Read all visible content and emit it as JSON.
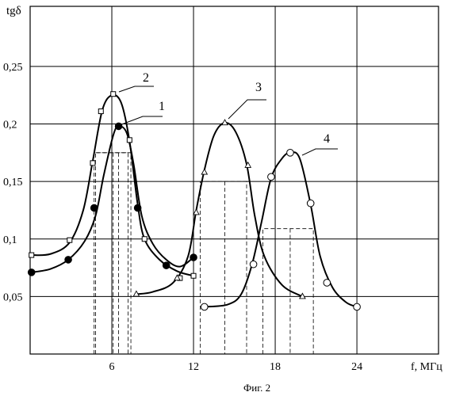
{
  "chart_data": {
    "type": "line",
    "title": "",
    "xlabel": "f, МГц",
    "ylabel": "tgδ",
    "xlim": [
      0,
      28.5
    ],
    "ylim": [
      0,
      0.3
    ],
    "grid": true,
    "x_ticks": [
      6,
      12,
      18,
      24
    ],
    "x_tick_labels": [
      "6",
      "12",
      "18",
      "24"
    ],
    "y_ticks": [
      0.05,
      0.1,
      0.15,
      0.2,
      0.25
    ],
    "y_tick_labels": [
      "0,05",
      "0,1",
      "0,15",
      "0,2",
      "0,25"
    ],
    "caption": "Фиг. 2",
    "series": [
      {
        "name": "1",
        "marker": "filled-circle",
        "curve": [
          [
            0.1,
            0.071
          ],
          [
            1.5,
            0.074
          ],
          [
            2.8,
            0.082
          ],
          [
            4.0,
            0.098
          ],
          [
            4.8,
            0.12
          ],
          [
            5.4,
            0.155
          ],
          [
            6.1,
            0.19
          ],
          [
            6.5,
            0.198
          ],
          [
            7.1,
            0.192
          ],
          [
            7.6,
            0.165
          ],
          [
            8.2,
            0.12
          ],
          [
            9.0,
            0.096
          ],
          [
            10.0,
            0.082
          ],
          [
            11.0,
            0.076
          ],
          [
            12.0,
            0.084
          ]
        ],
        "points": [
          [
            0.1,
            0.071
          ],
          [
            2.8,
            0.082
          ],
          [
            4.7,
            0.127
          ],
          [
            6.5,
            0.198
          ],
          [
            7.9,
            0.127
          ],
          [
            10.0,
            0.077
          ],
          [
            12.0,
            0.084
          ]
        ]
      },
      {
        "name": "2",
        "marker": "open-square",
        "curve": [
          [
            0.1,
            0.086
          ],
          [
            1.5,
            0.087
          ],
          [
            2.9,
            0.097
          ],
          [
            3.9,
            0.125
          ],
          [
            4.6,
            0.168
          ],
          [
            5.3,
            0.212
          ],
          [
            6.0,
            0.225
          ],
          [
            6.7,
            0.218
          ],
          [
            7.3,
            0.185
          ],
          [
            7.9,
            0.13
          ],
          [
            8.4,
            0.1
          ],
          [
            9.5,
            0.082
          ],
          [
            10.8,
            0.072
          ],
          [
            12.0,
            0.068
          ]
        ],
        "points": [
          [
            0.1,
            0.086
          ],
          [
            2.9,
            0.099
          ],
          [
            4.6,
            0.166
          ],
          [
            5.2,
            0.211
          ],
          [
            6.1,
            0.226
          ],
          [
            7.3,
            0.186
          ],
          [
            8.4,
            0.1
          ],
          [
            11.0,
            0.066
          ],
          [
            12.0,
            0.068
          ]
        ]
      },
      {
        "name": "3",
        "marker": "open-triangle",
        "curve": [
          [
            7.8,
            0.052
          ],
          [
            9.0,
            0.054
          ],
          [
            10.5,
            0.062
          ],
          [
            11.6,
            0.085
          ],
          [
            12.2,
            0.125
          ],
          [
            12.8,
            0.16
          ],
          [
            13.5,
            0.19
          ],
          [
            14.3,
            0.201
          ],
          [
            15.1,
            0.193
          ],
          [
            15.9,
            0.165
          ],
          [
            16.5,
            0.12
          ],
          [
            17.2,
            0.085
          ],
          [
            18.5,
            0.06
          ],
          [
            20.0,
            0.05
          ]
        ],
        "points": [
          [
            7.8,
            0.052
          ],
          [
            10.8,
            0.066
          ],
          [
            12.2,
            0.123
          ],
          [
            12.8,
            0.158
          ],
          [
            14.3,
            0.201
          ],
          [
            16.0,
            0.164
          ],
          [
            20.0,
            0.05
          ]
        ]
      },
      {
        "name": "4",
        "marker": "open-circle",
        "curve": [
          [
            12.8,
            0.041
          ],
          [
            14.5,
            0.043
          ],
          [
            15.5,
            0.052
          ],
          [
            16.3,
            0.078
          ],
          [
            17.0,
            0.115
          ],
          [
            17.7,
            0.153
          ],
          [
            18.5,
            0.17
          ],
          [
            19.1,
            0.175
          ],
          [
            19.8,
            0.17
          ],
          [
            20.6,
            0.13
          ],
          [
            21.3,
            0.085
          ],
          [
            22.2,
            0.058
          ],
          [
            23.2,
            0.045
          ],
          [
            24.0,
            0.041
          ]
        ],
        "points": [
          [
            12.8,
            0.041
          ],
          [
            16.4,
            0.078
          ],
          [
            17.7,
            0.154
          ],
          [
            19.1,
            0.175
          ],
          [
            20.6,
            0.131
          ],
          [
            21.8,
            0.062
          ],
          [
            24.0,
            0.041
          ]
        ]
      }
    ],
    "half_width_markers": [
      {
        "series": "1",
        "y": 0.175,
        "x_low": 4.8,
        "x_high": 7.2,
        "x_peak": 6.5
      },
      {
        "series": "2",
        "y": 0.175,
        "x_low": 4.7,
        "x_high": 7.4,
        "x_peak": 6.1
      },
      {
        "series": "3",
        "y": 0.15,
        "x_low": 12.5,
        "x_high": 15.9,
        "x_peak": 14.3
      },
      {
        "series": "4",
        "y": 0.109,
        "x_low": 17.1,
        "x_high": 20.8,
        "x_peak": 19.1
      }
    ]
  }
}
